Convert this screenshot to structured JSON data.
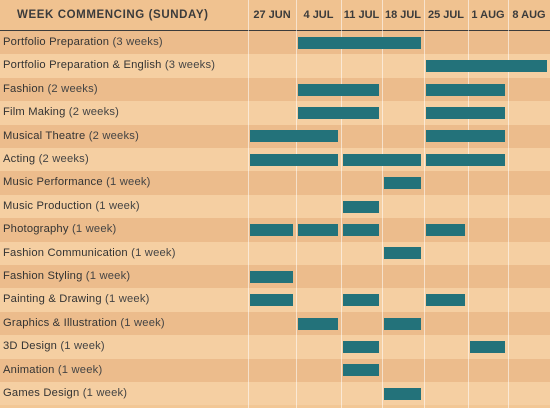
{
  "header": {
    "title": "WEEK COMMENCING (SUNDAY)"
  },
  "chart_data": {
    "type": "gantt",
    "title": "WEEK COMMENCING (SUNDAY)",
    "weeks": [
      "27 JUN",
      "4 JUL",
      "11 JUL",
      "18 JUL",
      "25 JUL",
      "1 AUG",
      "8 AUG"
    ],
    "courses": [
      {
        "name": "Portfolio Preparation",
        "duration": "(3 weeks)",
        "runs": [
          {
            "start": "4 JUL",
            "end": "18 JUL"
          }
        ]
      },
      {
        "name": "Portfolio Preparation & English",
        "duration": "(3 weeks)",
        "runs": [
          {
            "start": "25 JUL",
            "end": "8 AUG"
          }
        ]
      },
      {
        "name": "Fashion",
        "duration": "(2 weeks)",
        "runs": [
          {
            "start": "4 JUL",
            "end": "11 JUL"
          },
          {
            "start": "25 JUL",
            "end": "1 AUG"
          }
        ]
      },
      {
        "name": "Film Making",
        "duration": "(2 weeks)",
        "runs": [
          {
            "start": "4 JUL",
            "end": "11 JUL"
          },
          {
            "start": "25 JUL",
            "end": "1 AUG"
          }
        ]
      },
      {
        "name": "Musical Theatre",
        "duration": "(2 weeks)",
        "runs": [
          {
            "start": "27 JUN",
            "end": "4 JUL"
          },
          {
            "start": "25 JUL",
            "end": "1 AUG"
          }
        ]
      },
      {
        "name": "Acting",
        "duration": "(2 weeks)",
        "runs": [
          {
            "start": "27 JUN",
            "end": "4 JUL"
          },
          {
            "start": "11 JUL",
            "end": "18 JUL"
          },
          {
            "start": "25 JUL",
            "end": "1 AUG"
          }
        ]
      },
      {
        "name": "Music Performance",
        "duration": "(1 week)",
        "runs": [
          {
            "start": "18 JUL",
            "end": "18 JUL"
          }
        ]
      },
      {
        "name": "Music Production",
        "duration": "(1 week)",
        "runs": [
          {
            "start": "11 JUL",
            "end": "11 JUL"
          }
        ]
      },
      {
        "name": "Photography",
        "duration": "(1 week)",
        "runs": [
          {
            "start": "27 JUN",
            "end": "27 JUN"
          },
          {
            "start": "4 JUL",
            "end": "4 JUL"
          },
          {
            "start": "11 JUL",
            "end": "11 JUL"
          },
          {
            "start": "25 JUL",
            "end": "25 JUL"
          }
        ]
      },
      {
        "name": "Fashion Communication",
        "duration": "(1 week)",
        "runs": [
          {
            "start": "18 JUL",
            "end": "18 JUL"
          }
        ]
      },
      {
        "name": "Fashion Styling",
        "duration": "(1 week)",
        "runs": [
          {
            "start": "27 JUN",
            "end": "27 JUN"
          }
        ]
      },
      {
        "name": "Painting & Drawing",
        "duration": "(1 week)",
        "runs": [
          {
            "start": "27 JUN",
            "end": "27 JUN"
          },
          {
            "start": "11 JUL",
            "end": "11 JUL"
          },
          {
            "start": "25 JUL",
            "end": "25 JUL"
          }
        ]
      },
      {
        "name": "Graphics & Illustration",
        "duration": "(1 week)",
        "runs": [
          {
            "start": "4 JUL",
            "end": "4 JUL"
          },
          {
            "start": "18 JUL",
            "end": "18 JUL"
          }
        ]
      },
      {
        "name": "3D Design",
        "duration": "(1 week)",
        "runs": [
          {
            "start": "11 JUL",
            "end": "11 JUL"
          },
          {
            "start": "1 AUG",
            "end": "1 AUG"
          }
        ]
      },
      {
        "name": "Animation",
        "duration": "(1 week)",
        "runs": [
          {
            "start": "11 JUL",
            "end": "11 JUL"
          }
        ]
      },
      {
        "name": "Games Design",
        "duration": "(1 week)",
        "runs": [
          {
            "start": "18 JUL",
            "end": "18 JUL"
          }
        ]
      }
    ],
    "colors": {
      "bar": "#23727a",
      "row_odd": "#ecbc8c",
      "row_even": "#f5cfa2",
      "header_text": "#3b3b3b"
    },
    "grid": true,
    "legend": "none"
  }
}
